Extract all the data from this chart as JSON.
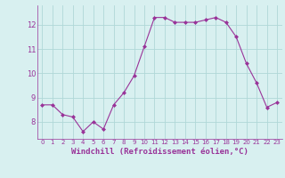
{
  "x": [
    0,
    1,
    2,
    3,
    4,
    5,
    6,
    7,
    8,
    9,
    10,
    11,
    12,
    13,
    14,
    15,
    16,
    17,
    18,
    19,
    20,
    21,
    22,
    23
  ],
  "y": [
    8.7,
    8.7,
    8.3,
    8.2,
    7.6,
    8.0,
    7.7,
    8.7,
    9.2,
    9.9,
    11.1,
    12.3,
    12.3,
    12.1,
    12.1,
    12.1,
    12.2,
    12.3,
    12.1,
    11.5,
    10.4,
    9.6,
    8.6,
    8.8
  ],
  "line_color": "#993399",
  "marker": "D",
  "marker_size": 2.0,
  "xlabel": "Windchill (Refroidissement éolien,°C)",
  "xlabel_fontsize": 6.5,
  "background_color": "#d8f0f0",
  "grid_color": "#b0d8d8",
  "tick_label_color": "#993399",
  "axis_label_color": "#993399",
  "yticks": [
    8,
    9,
    10,
    11,
    12
  ],
  "xticks": [
    0,
    1,
    2,
    3,
    4,
    5,
    6,
    7,
    8,
    9,
    10,
    11,
    12,
    13,
    14,
    15,
    16,
    17,
    18,
    19,
    20,
    21,
    22,
    23
  ],
  "ylim": [
    7.3,
    12.8
  ],
  "xlim": [
    -0.5,
    23.5
  ]
}
